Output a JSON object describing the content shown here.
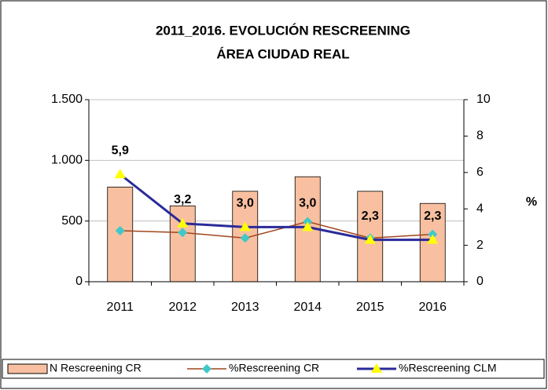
{
  "chart_data": {
    "type": "bar",
    "title": [
      "2011_2016. EVOLUCIÓN RESCREENING",
      "ÁREA CIUDAD REAL"
    ],
    "y2_label": "%",
    "categories": [
      "2011",
      "2012",
      "2013",
      "2014",
      "2015",
      "2016"
    ],
    "series": [
      {
        "name": "N Rescreening CR",
        "type": "bar",
        "color": "#f8c0a0",
        "values": [
          780,
          625,
          745,
          865,
          745,
          645
        ]
      },
      {
        "name": "%Rescreening CR",
        "type": "line",
        "axis": "y2",
        "color": "#a0451d",
        "marker_color": "#40c8c8",
        "marker": "diamond",
        "values": [
          2.8,
          2.7,
          2.4,
          3.3,
          2.4,
          2.6
        ]
      },
      {
        "name": "%Rescreening CLM",
        "type": "line",
        "axis": "y2",
        "color": "#2a2a9a",
        "marker_color": "#ffff00",
        "marker": "triangle",
        "values": [
          5.9,
          3.2,
          3.0,
          3.0,
          2.3,
          2.3
        ],
        "value_labels": [
          "5,9",
          "3,2",
          "3,0",
          "3,0",
          "2,3",
          "2,3"
        ]
      }
    ],
    "ylim": [
      0,
      1500
    ],
    "yticks": [
      0,
      500,
      {
        "value": 1000,
        "label": "1.000"
      },
      {
        "value": 1500,
        "label": "1.500"
      }
    ],
    "y2lim": [
      0,
      10
    ],
    "y2ticks": [
      0,
      2,
      4,
      6,
      8,
      10
    ],
    "grid": true,
    "legend": "bottom"
  }
}
